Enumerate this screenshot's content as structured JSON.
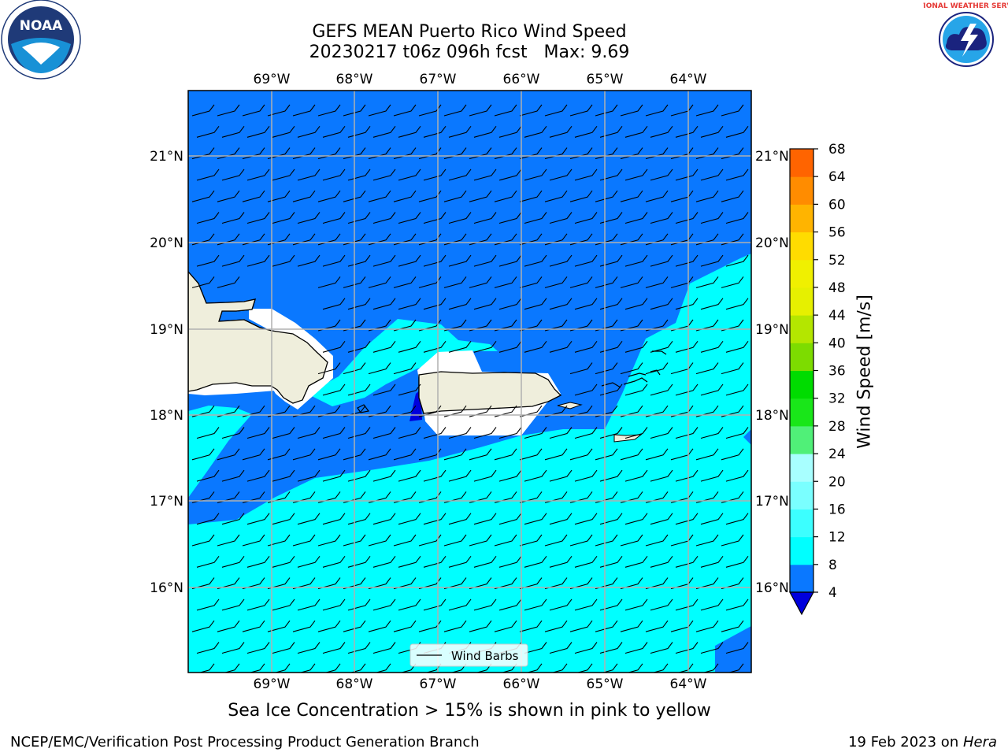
{
  "title": {
    "line1": "GEFS MEAN Puerto Rico Wind Speed",
    "line2": "20230217 t06z 096h fcst   Max: 9.69"
  },
  "subtitle": "Sea Ice Concentration > 15% is shown in pink to yellow",
  "footer": {
    "left": "NCEP/EMC/Verification Post Processing Product Generation Branch",
    "right_prefix": "19 Feb 2023 on ",
    "right_host": "Hera"
  },
  "logos": {
    "noaa": "NOAA",
    "noaa_ring": "NATIONAL OCEANIC AND ATMOSPHERIC ADMINISTRATION • U.S. DEPARTMENT OF COMMERCE",
    "nws_ring": "NATIONAL WEATHER SERVICE"
  },
  "map": {
    "lon_ticks": [
      "69°W",
      "68°W",
      "67°W",
      "66°W",
      "65°W",
      "64°W"
    ],
    "lat_ticks": [
      "21°N",
      "20°N",
      "19°N",
      "18°N",
      "17°N",
      "16°N"
    ],
    "legend_label": "Wind Barbs"
  },
  "colorbar": {
    "label": "Wind Speed [m/s]",
    "ticks": [
      "4",
      "8",
      "12",
      "16",
      "20",
      "24",
      "28",
      "32",
      "36",
      "40",
      "44",
      "48",
      "52",
      "56",
      "60",
      "64",
      "68"
    ],
    "colors": [
      "#0a78ff",
      "#00ffff",
      "#3cffff",
      "#7affff",
      "#a8ffff",
      "#50f078",
      "#19e619",
      "#00dc00",
      "#7ddc00",
      "#b4e600",
      "#e6f000",
      "#f0f000",
      "#ffdc00",
      "#ffb400",
      "#ff8c00",
      "#ff6400",
      "#ff3c00",
      "#ff1e00"
    ],
    "underflow_color": "#0000dc"
  },
  "colors": {
    "speed_4_8": "#0a78ff",
    "speed_8_12": "#00ffff",
    "speed_below_4": "#0000dc",
    "land": "#efeedc",
    "grid": "#b0b0b0"
  }
}
